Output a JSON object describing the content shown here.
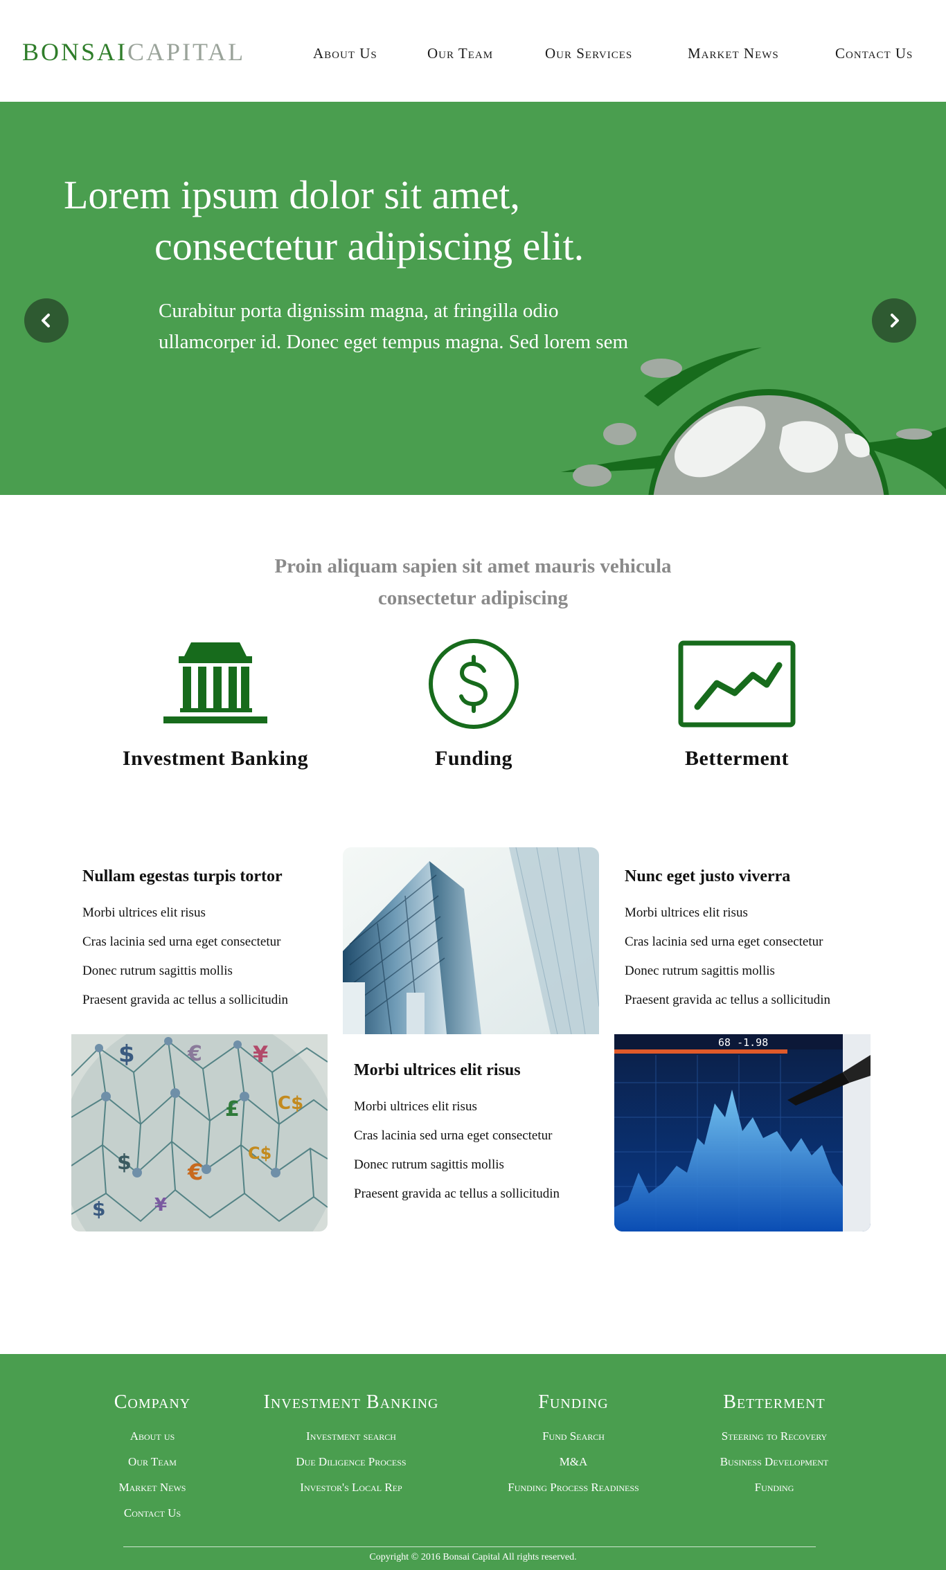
{
  "header": {
    "logo_part1": "BONSAI",
    "logo_part2": "CAPITAL",
    "nav": [
      "About Us",
      "Our Team",
      "Our Services",
      "Market News",
      "Contact Us"
    ]
  },
  "hero": {
    "title_line1": "Lorem ipsum dolor sit amet,",
    "title_line2": "consectetur adipiscing elit.",
    "body": "Curabitur porta dignissim magna, at fringilla odio ullamcorper id. Donec eget tempus magna. Sed lorem sem"
  },
  "intro": {
    "line1": "Proin aliquam sapien sit amet mauris vehicula",
    "line2": "consectetur adipiscing"
  },
  "features": [
    {
      "label": "Investment Banking",
      "icon": "bank-icon"
    },
    {
      "label": "Funding",
      "icon": "dollar-circle-icon"
    },
    {
      "label": "Betterment",
      "icon": "trend-chart-icon"
    }
  ],
  "grid": {
    "block1": {
      "title": "Nullam egestas turpis tortor",
      "items": [
        "Morbi ultrices elit risus",
        "Cras lacinia sed urna eget consectetur",
        "Donec rutrum sagittis mollis",
        "Praesent gravida ac tellus a sollicitudin"
      ]
    },
    "block2": {
      "title": "Nunc eget justo viverra",
      "items": [
        "Morbi ultrices elit risus",
        "Cras lacinia sed urna eget consectetur",
        "Donec rutrum sagittis mollis",
        "Praesent gravida ac tellus a sollicitudin"
      ]
    },
    "block3": {
      "title": "Morbi ultrices elit risus",
      "items": [
        "Morbi ultrices elit risus",
        "Cras lacinia sed urna eget consectetur",
        "Donec rutrum sagittis mollis",
        "Praesent gravida ac tellus a sollicitudin"
      ]
    },
    "photos": [
      "skyscraper-photo",
      "currency-globe-photo",
      "stock-chart-photo"
    ],
    "chart_readout": "68 -1.98"
  },
  "footer": {
    "columns": [
      {
        "title": "Company",
        "links": [
          "About us",
          "Our Team",
          "Market News",
          "Contact Us"
        ]
      },
      {
        "title": "Investment Banking",
        "links": [
          "Investment search",
          "Due Diligence Process",
          "Investor's Local Rep"
        ]
      },
      {
        "title": "Funding",
        "links": [
          "Fund Search",
          "M&A",
          "Funding Process Readiness"
        ]
      },
      {
        "title": "Betterment",
        "links": [
          "Steering to Recovery",
          "Business Development",
          "Funding"
        ]
      }
    ],
    "copyright": "Copyright © 2016 Bonsai Capital All rights reserved."
  },
  "colors": {
    "brand_green": "#4a9e4f",
    "dark_green": "#176b1c",
    "logo_gray": "#9aa39a"
  }
}
